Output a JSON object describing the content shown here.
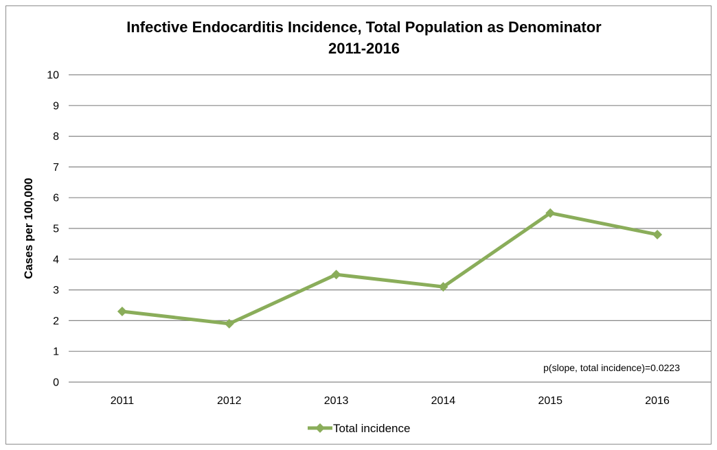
{
  "chart_data": {
    "type": "line",
    "title": "Infective Endocarditis Incidence, Total Population as Denominator",
    "subtitle": "2011-2016",
    "xlabel": "",
    "ylabel": "Cases per 100,000",
    "categories": [
      "2011",
      "2012",
      "2013",
      "2014",
      "2015",
      "2016"
    ],
    "series": [
      {
        "name": "Total incidence",
        "values": [
          2.3,
          1.9,
          3.5,
          3.1,
          5.5,
          4.8
        ],
        "color": "#8aad5a",
        "marker": "diamond"
      }
    ],
    "ylim": [
      0,
      10
    ],
    "yticks": [
      "0",
      "1",
      "2",
      "3",
      "4",
      "5",
      "6",
      "7",
      "8",
      "9",
      "10"
    ],
    "grid": "horizontal",
    "legend": "bottom",
    "annotation": "p(slope, total incidence)=0.0223",
    "gridline_color": "#868686"
  }
}
